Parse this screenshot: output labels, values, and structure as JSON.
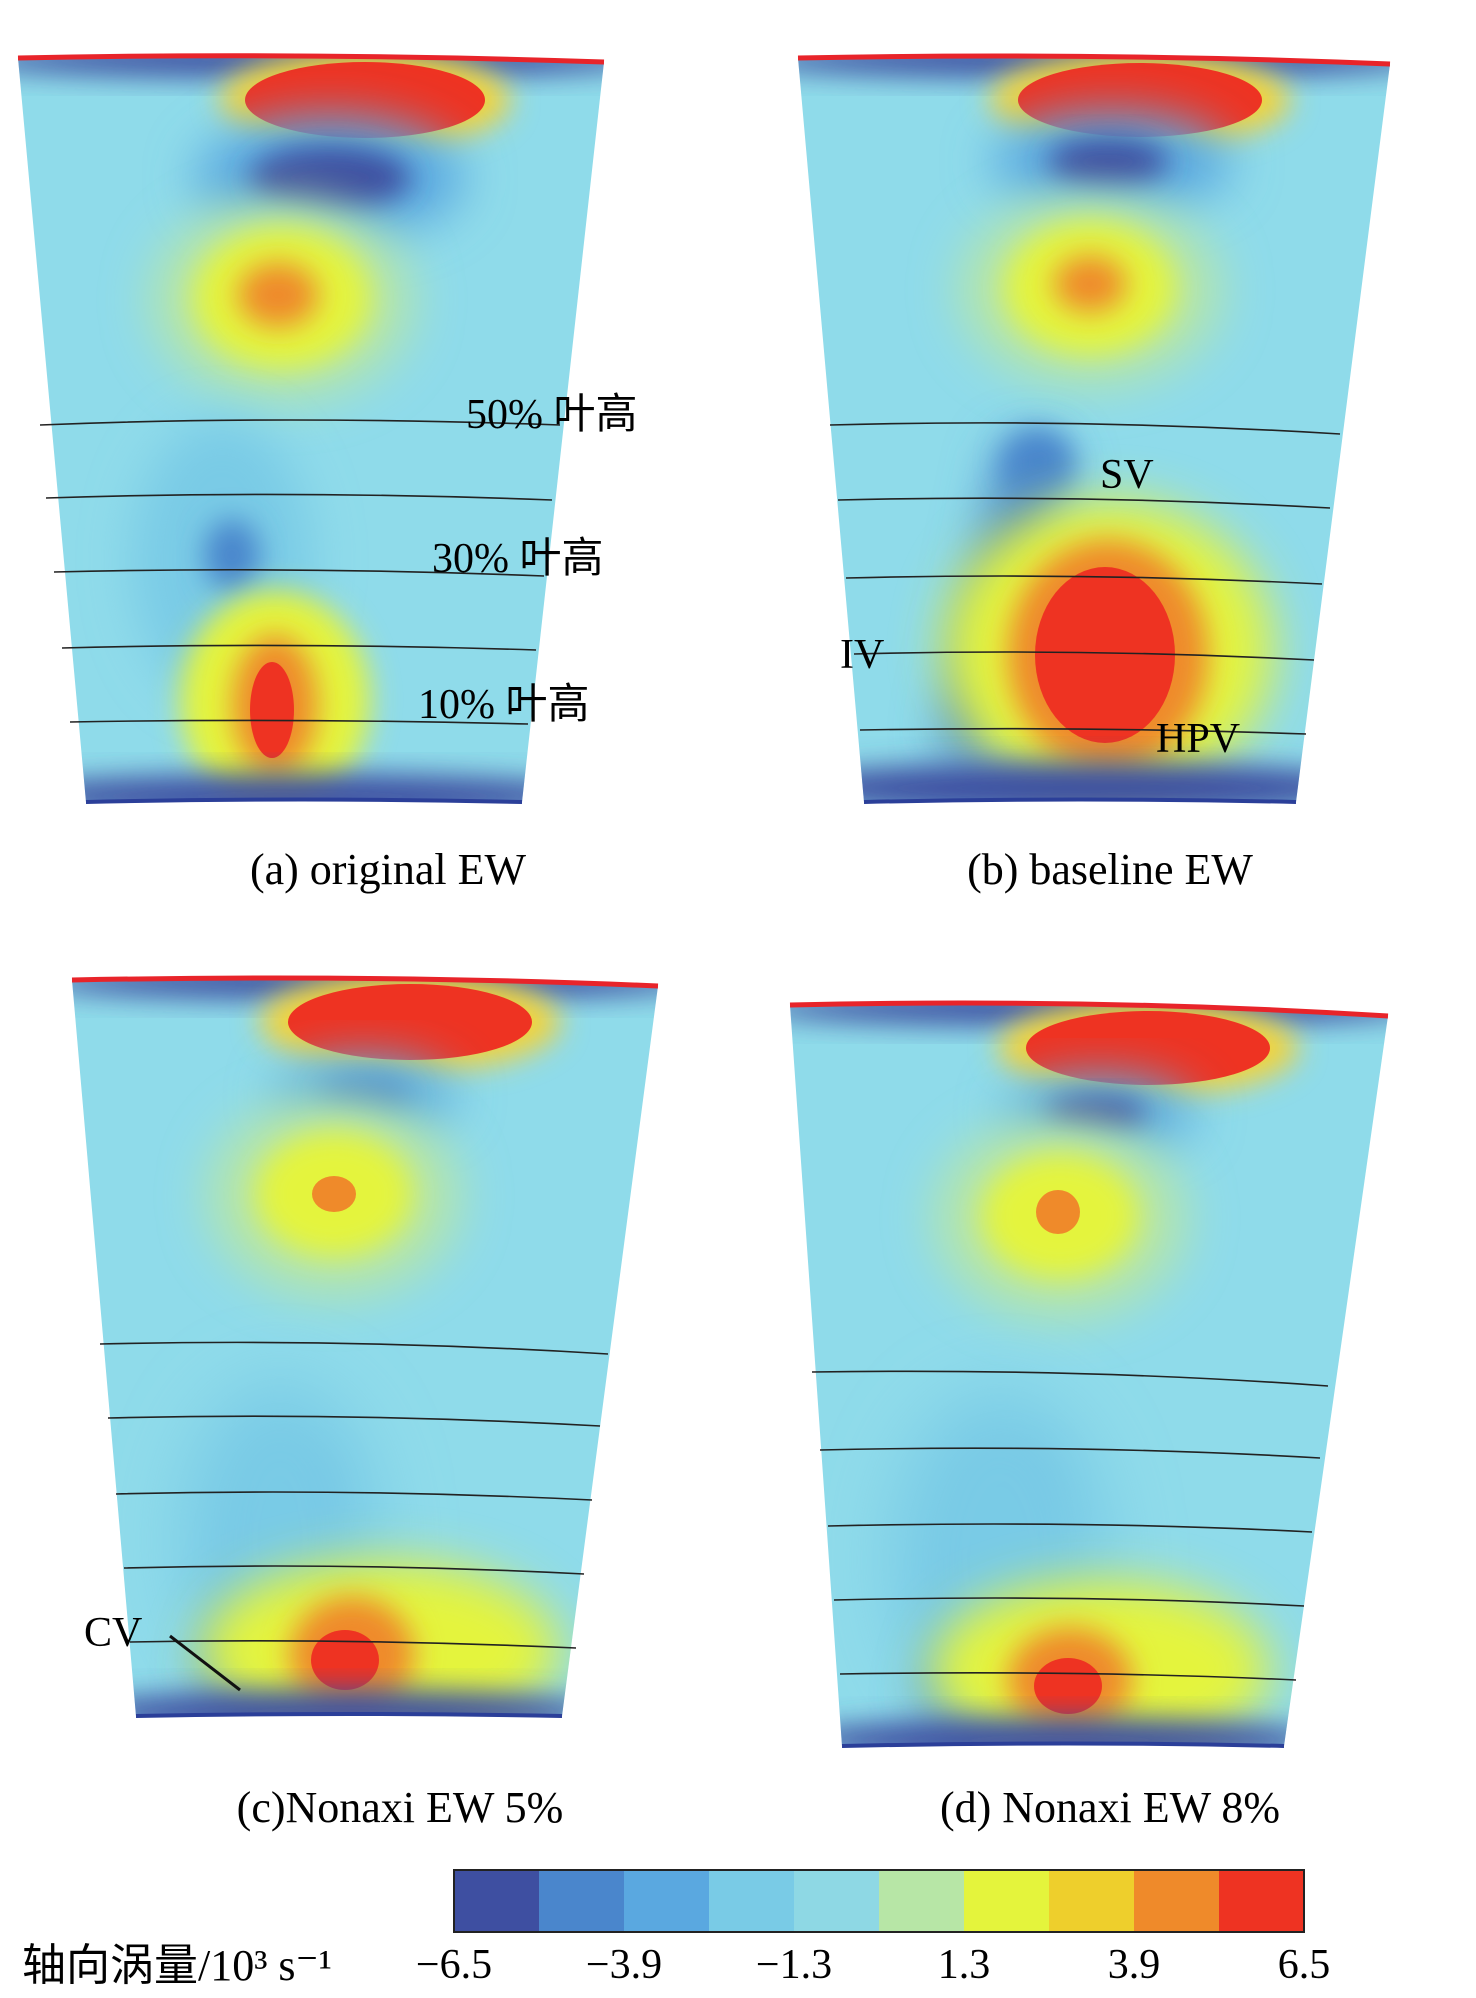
{
  "panels": [
    {
      "caption": "(a) original EW",
      "annotations": [
        "50% 叶高",
        "30% 叶高",
        "10% 叶高"
      ]
    },
    {
      "caption": "(b) baseline EW",
      "annotations": [
        "SV",
        "IV",
        "HPV"
      ]
    },
    {
      "caption": "(c)Nonaxi EW 5%",
      "annotations": [
        "CV"
      ]
    },
    {
      "caption": "(d) Nonaxi EW 8%",
      "annotations": []
    }
  ],
  "colorbar": {
    "title": "轴向涡量/10³ s⁻¹",
    "tick_labels": [
      "−6.5",
      "−3.9",
      "−1.3",
      "1.3",
      "3.9",
      "6.5"
    ],
    "ticks": [
      -6.5,
      -3.9,
      -1.3,
      1.3,
      3.9,
      6.5
    ],
    "colors": [
      "#3e4fa1",
      "#4a86cc",
      "#5aa8e0",
      "#79cbe6",
      "#8ed8e4",
      "#b7e6a6",
      "#e4f43c",
      "#eecf2c",
      "#ef8a2a",
      "#ee3322"
    ]
  },
  "colors": {
    "background": "#8fdbea",
    "neg_strong": "#3e4fa1",
    "neg_mid": "#4a86cc",
    "pos_yellow": "#e4f43c",
    "pos_orange": "#ef8a2a",
    "pos_red": "#ee3322",
    "endwall_line": "#e8242a"
  }
}
